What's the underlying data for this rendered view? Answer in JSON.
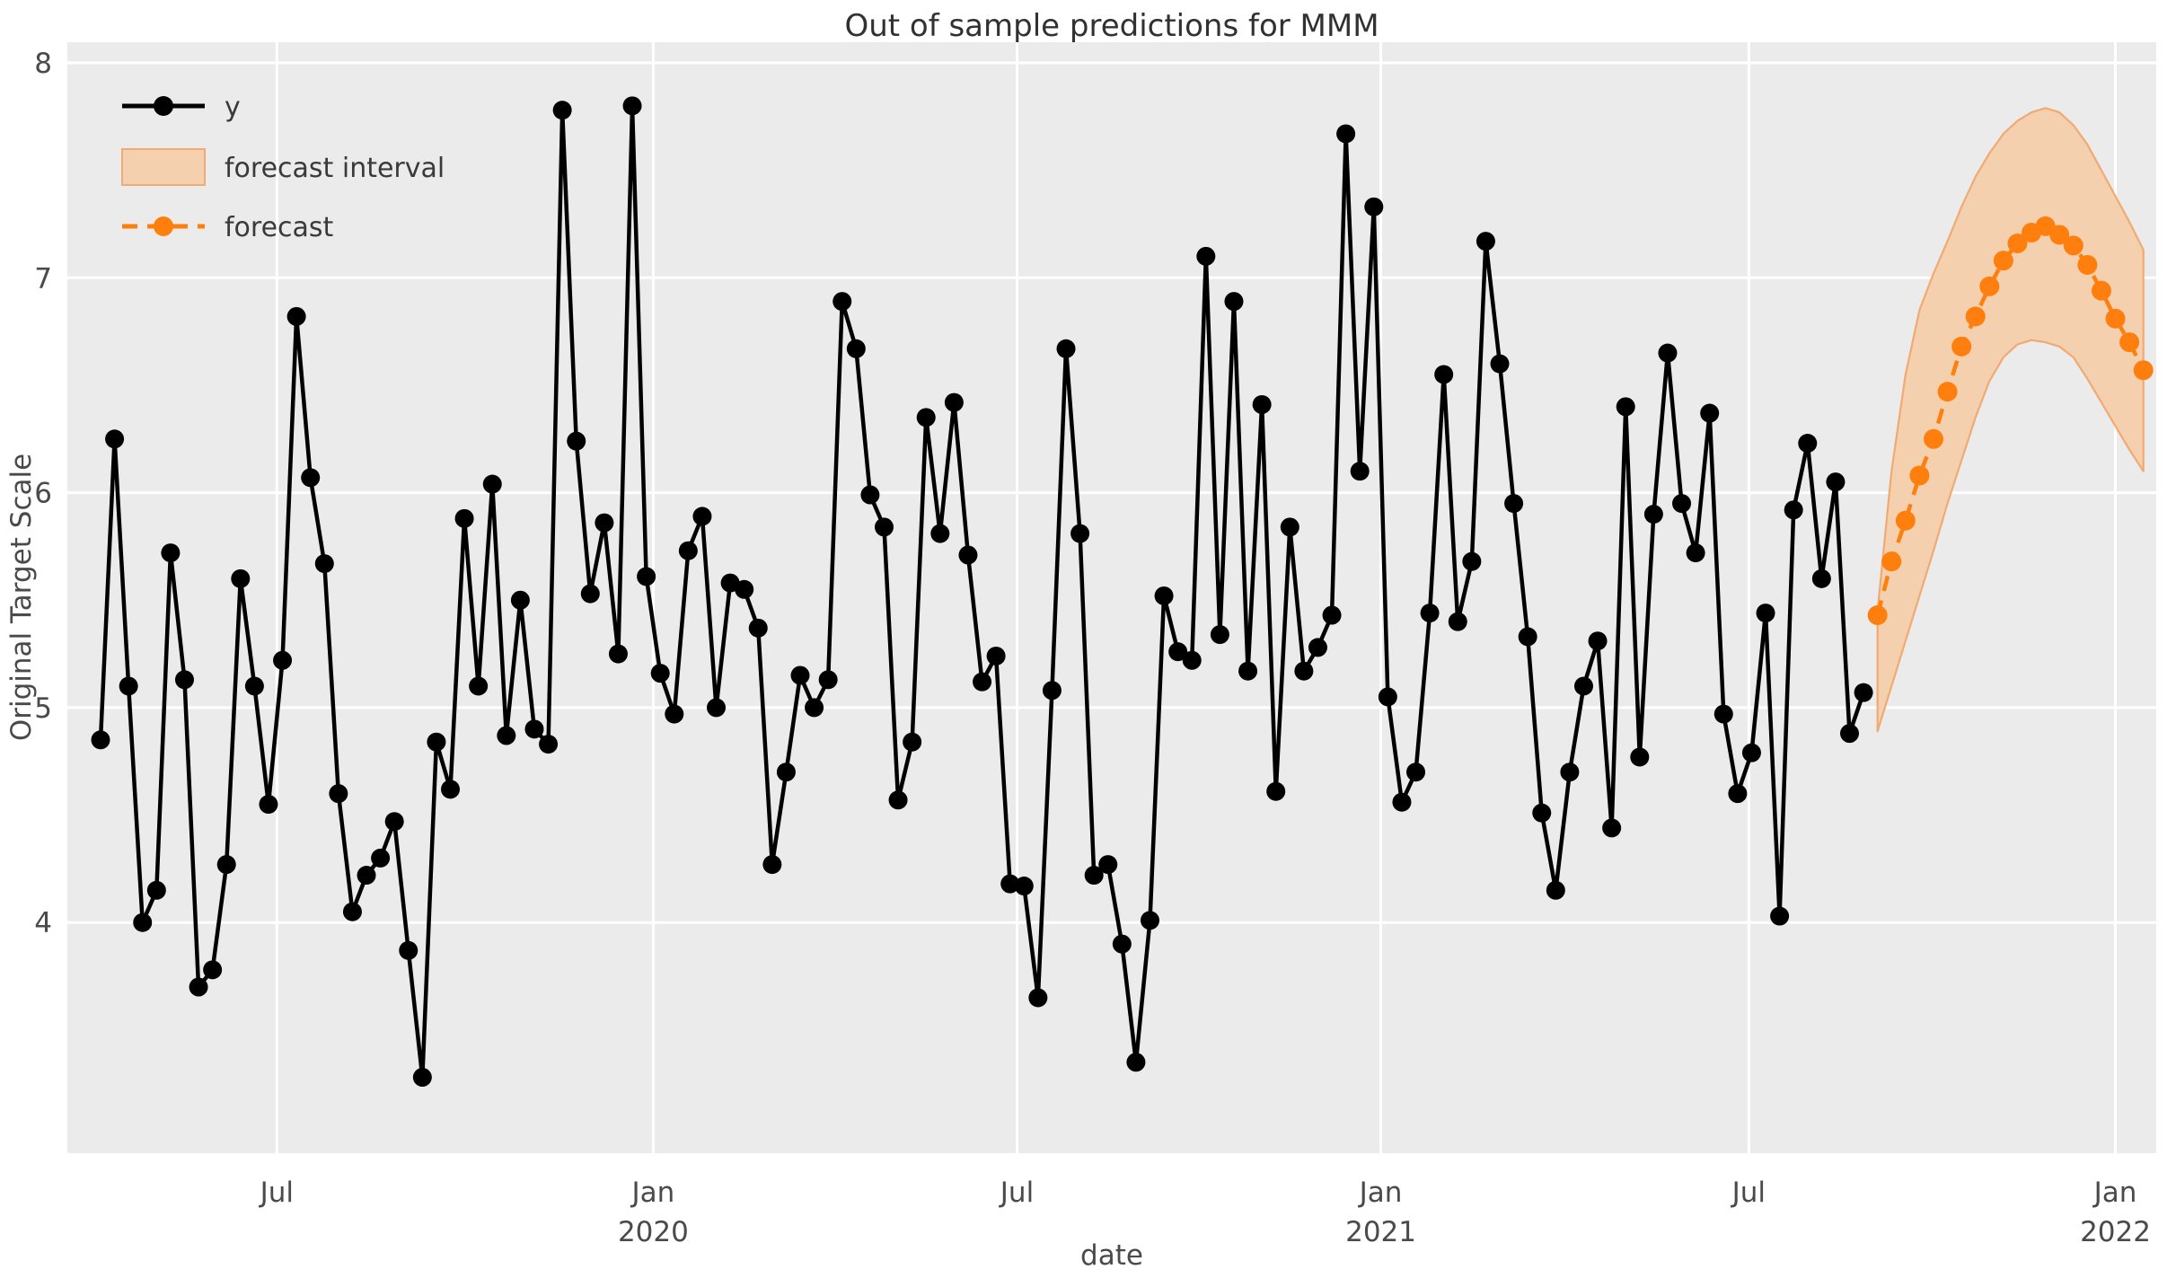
{
  "title": "Out of sample predictions for MMM",
  "x_axis_label": "date",
  "y_axis_label": "Original Target Scale",
  "legend": {
    "position": "upper left",
    "items": [
      {
        "label": "y",
        "swatch": "solid-black-line-with-circle-marker"
      },
      {
        "label": "forecast interval",
        "swatch": "light-orange-filled-patch"
      },
      {
        "label": "forecast",
        "swatch": "dashed-orange-line-with-circle-marker"
      }
    ]
  },
  "colors": {
    "figure_background": "#ffffff",
    "plot_background": "#ebebeb",
    "grid": "#ffffff",
    "series_y": "#000000",
    "forecast": "#ff7f0e",
    "band_fill": "#f4d0ae",
    "band_edge": "#f0aa72",
    "tick_text": "#4a4a4a",
    "title_text": "#313131"
  },
  "chart_data": {
    "type": "line",
    "title": "Out of sample predictions for MMM",
    "xlabel": "date",
    "ylabel": "Original Target Scale",
    "x_unit": "weekly observations (week index from first point)",
    "grid": true,
    "legend_position": "upper left",
    "background": "#ebebeb",
    "ylim": [
      2.93,
      8.1
    ],
    "xlim": [
      -2.4,
      147.0
    ],
    "y_ticks": [
      4,
      5,
      6,
      7,
      8
    ],
    "x_ticks": [
      {
        "week": 12.6,
        "label": "Jul",
        "sublabel": ""
      },
      {
        "week": 39.5,
        "label": "Jan",
        "sublabel": "2020"
      },
      {
        "week": 65.5,
        "label": "Jul",
        "sublabel": ""
      },
      {
        "week": 91.5,
        "label": "Jan",
        "sublabel": "2021"
      },
      {
        "week": 117.8,
        "label": "Jul",
        "sublabel": ""
      },
      {
        "week": 144.0,
        "label": "Jan",
        "sublabel": "2022"
      }
    ],
    "series": [
      {
        "name": "y",
        "style": "solid black line with circle markers",
        "x_start_week": 0,
        "values": [
          4.85,
          6.25,
          5.1,
          4.0,
          4.15,
          5.72,
          5.13,
          3.7,
          3.78,
          4.27,
          5.6,
          5.1,
          4.55,
          5.22,
          6.82,
          6.07,
          5.67,
          4.6,
          4.05,
          4.22,
          4.3,
          4.47,
          3.87,
          3.28,
          4.84,
          4.62,
          5.88,
          5.1,
          6.04,
          4.87,
          5.5,
          4.9,
          4.83,
          7.78,
          6.24,
          5.53,
          5.86,
          5.25,
          7.8,
          5.61,
          5.16,
          4.97,
          5.73,
          5.89,
          5.0,
          5.58,
          5.55,
          5.37,
          4.27,
          4.7,
          5.15,
          5.0,
          5.13,
          6.89,
          6.67,
          5.99,
          5.84,
          4.57,
          4.84,
          6.35,
          5.81,
          6.42,
          5.71,
          5.12,
          5.24,
          4.18,
          4.17,
          3.65,
          5.08,
          6.67,
          5.81,
          4.22,
          4.27,
          3.9,
          3.35,
          4.01,
          5.52,
          5.26,
          5.22,
          7.1,
          5.34,
          6.89,
          5.17,
          6.41,
          4.61,
          5.84,
          5.17,
          5.28,
          5.43,
          7.67,
          6.1,
          7.33,
          5.05,
          4.56,
          4.7,
          5.44,
          6.55,
          5.4,
          5.68,
          7.17,
          6.6,
          5.95,
          5.33,
          4.51,
          4.15,
          4.7,
          5.1,
          5.31,
          4.44,
          6.4,
          4.77,
          5.9,
          6.65,
          5.95,
          5.72,
          6.37,
          4.97,
          4.6,
          4.79,
          5.44,
          4.03,
          5.92,
          6.23,
          5.6,
          6.05,
          4.88,
          5.07
        ]
      },
      {
        "name": "forecast",
        "style": "dashed orange line with circle markers",
        "x_start_week": 127,
        "values": [
          5.43,
          5.68,
          5.87,
          6.08,
          6.25,
          6.47,
          6.68,
          6.82,
          6.96,
          7.08,
          7.16,
          7.21,
          7.24,
          7.2,
          7.15,
          7.06,
          6.94,
          6.81,
          6.7,
          6.57
        ]
      },
      {
        "name": "forecast interval",
        "type": "band",
        "style": "light orange shaded band around forecast",
        "x_start_week": 127,
        "upper": [
          5.45,
          6.1,
          6.55,
          6.85,
          7.02,
          7.17,
          7.33,
          7.47,
          7.58,
          7.67,
          7.73,
          7.77,
          7.79,
          7.77,
          7.71,
          7.62,
          7.5,
          7.38,
          7.26,
          7.13
        ],
        "lower": [
          4.89,
          5.1,
          5.31,
          5.52,
          5.73,
          5.95,
          6.15,
          6.35,
          6.52,
          6.63,
          6.69,
          6.71,
          6.7,
          6.68,
          6.63,
          6.53,
          6.42,
          6.31,
          6.2,
          6.1
        ]
      }
    ]
  }
}
